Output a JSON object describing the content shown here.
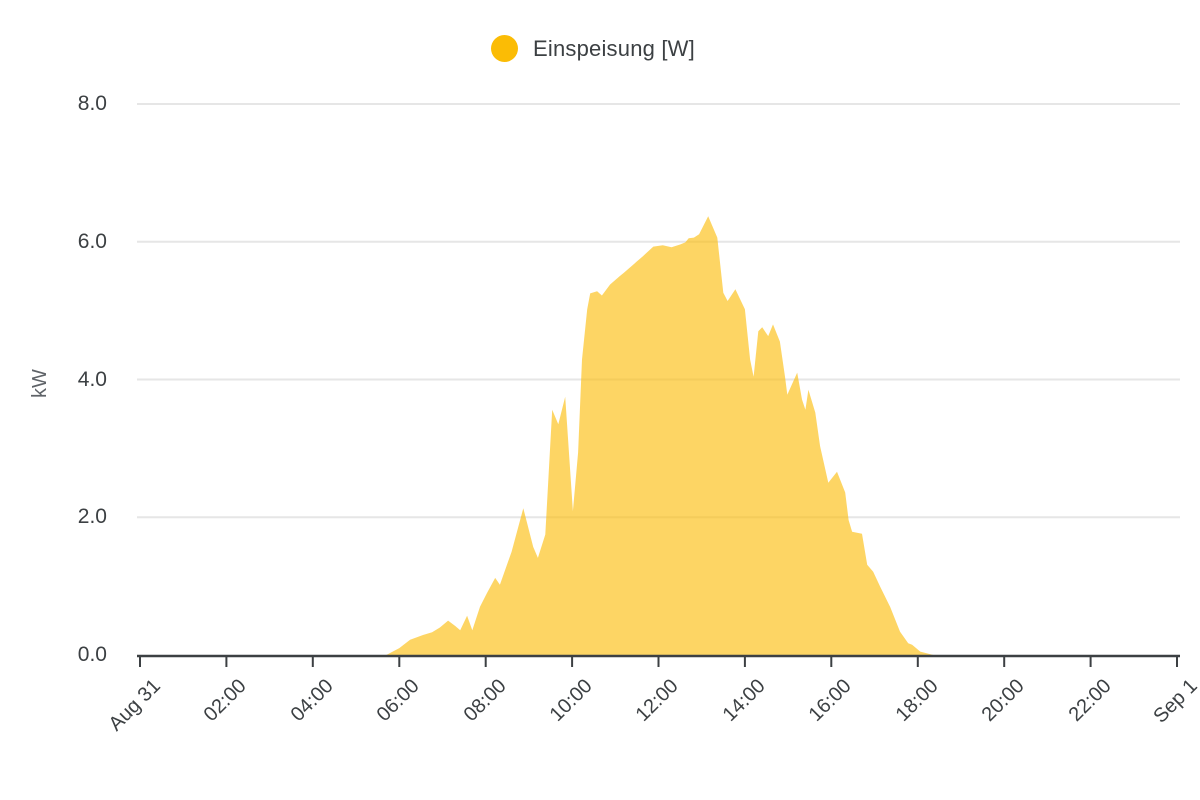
{
  "legend": {
    "label": "Einspeisung [W]"
  },
  "chart_data": {
    "type": "area",
    "title": "",
    "xlabel": "",
    "ylabel": "kW",
    "xlim_hours": [
      0,
      24
    ],
    "ylim": [
      0,
      8
    ],
    "grid": "horizontal",
    "legend_position": "top-center",
    "colors": {
      "accent": "#FBBC05",
      "area_fill": "#FBBC05",
      "area_fill_opacity": 0.62,
      "grid": "#E6E6E6",
      "axis": "#3C4043",
      "tick_text": "#3C4043",
      "axis_title_text": "#5F6368"
    },
    "x_ticks": [
      {
        "t": 0,
        "label": "Aug 31"
      },
      {
        "t": 2,
        "label": "02:00"
      },
      {
        "t": 4,
        "label": "04:00"
      },
      {
        "t": 6,
        "label": "06:00"
      },
      {
        "t": 8,
        "label": "08:00"
      },
      {
        "t": 10,
        "label": "10:00"
      },
      {
        "t": 12,
        "label": "12:00"
      },
      {
        "t": 14,
        "label": "14:00"
      },
      {
        "t": 16,
        "label": "16:00"
      },
      {
        "t": 18,
        "label": "18:00"
      },
      {
        "t": 20,
        "label": "20:00"
      },
      {
        "t": 22,
        "label": "22:00"
      },
      {
        "t": 24,
        "label": "Sep 1"
      }
    ],
    "y_ticks": [
      {
        "v": 0,
        "label": "0.0"
      },
      {
        "v": 2,
        "label": "2.0"
      },
      {
        "v": 4,
        "label": "4.0"
      },
      {
        "v": 6,
        "label": "6.0"
      },
      {
        "v": 8,
        "label": "8.0"
      }
    ],
    "series": [
      {
        "name": "Einspeisung [W]",
        "unit_display": "kW",
        "points": [
          [
            0.0,
            0
          ],
          [
            5.7,
            0
          ],
          [
            6.0,
            0.1
          ],
          [
            6.25,
            0.22
          ],
          [
            6.55,
            0.29
          ],
          [
            6.76,
            0.33
          ],
          [
            6.94,
            0.4
          ],
          [
            7.13,
            0.5
          ],
          [
            7.3,
            0.42
          ],
          [
            7.41,
            0.36
          ],
          [
            7.57,
            0.57
          ],
          [
            7.69,
            0.36
          ],
          [
            7.87,
            0.7
          ],
          [
            8.03,
            0.9
          ],
          [
            8.22,
            1.12
          ],
          [
            8.33,
            1.02
          ],
          [
            8.6,
            1.5
          ],
          [
            8.87,
            2.13
          ],
          [
            9.1,
            1.57
          ],
          [
            9.21,
            1.41
          ],
          [
            9.38,
            1.75
          ],
          [
            9.54,
            3.56
          ],
          [
            9.68,
            3.35
          ],
          [
            9.84,
            3.75
          ],
          [
            10.02,
            2.09
          ],
          [
            10.14,
            2.94
          ],
          [
            10.23,
            4.29
          ],
          [
            10.35,
            5.02
          ],
          [
            10.42,
            5.25
          ],
          [
            10.58,
            5.28
          ],
          [
            10.69,
            5.22
          ],
          [
            10.88,
            5.38
          ],
          [
            11.1,
            5.5
          ],
          [
            11.2,
            5.55
          ],
          [
            11.64,
            5.79
          ],
          [
            11.88,
            5.93
          ],
          [
            12.1,
            5.95
          ],
          [
            12.3,
            5.92
          ],
          [
            12.5,
            5.96
          ],
          [
            12.62,
            5.99
          ],
          [
            12.7,
            6.05
          ],
          [
            12.82,
            6.06
          ],
          [
            12.94,
            6.11
          ],
          [
            13.15,
            6.37
          ],
          [
            13.36,
            6.06
          ],
          [
            13.5,
            5.26
          ],
          [
            13.6,
            5.14
          ],
          [
            13.78,
            5.31
          ],
          [
            14.0,
            5.02
          ],
          [
            14.12,
            4.29
          ],
          [
            14.2,
            4.04
          ],
          [
            14.31,
            4.7
          ],
          [
            14.4,
            4.76
          ],
          [
            14.54,
            4.63
          ],
          [
            14.65,
            4.8
          ],
          [
            14.81,
            4.55
          ],
          [
            14.93,
            4.03
          ],
          [
            14.98,
            3.78
          ],
          [
            15.21,
            4.1
          ],
          [
            15.32,
            3.71
          ],
          [
            15.4,
            3.56
          ],
          [
            15.47,
            3.85
          ],
          [
            15.63,
            3.52
          ],
          [
            15.74,
            3.03
          ],
          [
            15.93,
            2.5
          ],
          [
            16.13,
            2.66
          ],
          [
            16.32,
            2.36
          ],
          [
            16.4,
            1.96
          ],
          [
            16.48,
            1.79
          ],
          [
            16.71,
            1.76
          ],
          [
            16.83,
            1.31
          ],
          [
            16.97,
            1.21
          ],
          [
            17.13,
            0.99
          ],
          [
            17.36,
            0.7
          ],
          [
            17.59,
            0.34
          ],
          [
            17.78,
            0.17
          ],
          [
            17.87,
            0.15
          ],
          [
            18.06,
            0.05
          ],
          [
            18.36,
            0
          ],
          [
            24.0,
            0
          ]
        ]
      }
    ]
  }
}
